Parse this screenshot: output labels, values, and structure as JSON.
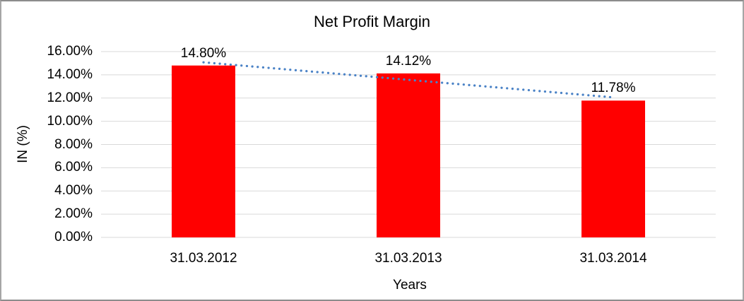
{
  "window": {
    "background_color": "#ffffff",
    "border_color": "#a6a6a6"
  },
  "chart_data": {
    "type": "bar",
    "title": "Net Profit Margin",
    "xlabel": "Years",
    "ylabel": "IN (%)",
    "categories": [
      "31.03.2012",
      "31.03.2013",
      "31.03.2014"
    ],
    "values": [
      14.8,
      14.12,
      11.78
    ],
    "data_labels": [
      "14.80%",
      "14.12%",
      "11.78%"
    ],
    "ylim": [
      0,
      16
    ],
    "ytick_values": [
      0,
      2,
      4,
      6,
      8,
      10,
      12,
      14,
      16
    ],
    "ytick_labels": [
      "0.00%",
      "2.00%",
      "4.00%",
      "6.00%",
      "8.00%",
      "10.00%",
      "12.00%",
      "14.00%",
      "16.00%"
    ],
    "grid": true,
    "legend": "none",
    "bar_color": "#ff0000",
    "gridline_color": "#d9d9d9",
    "text_color": "#000000",
    "trendline": {
      "type": "linear",
      "style": "dotted",
      "color": "#4a82c6"
    }
  }
}
